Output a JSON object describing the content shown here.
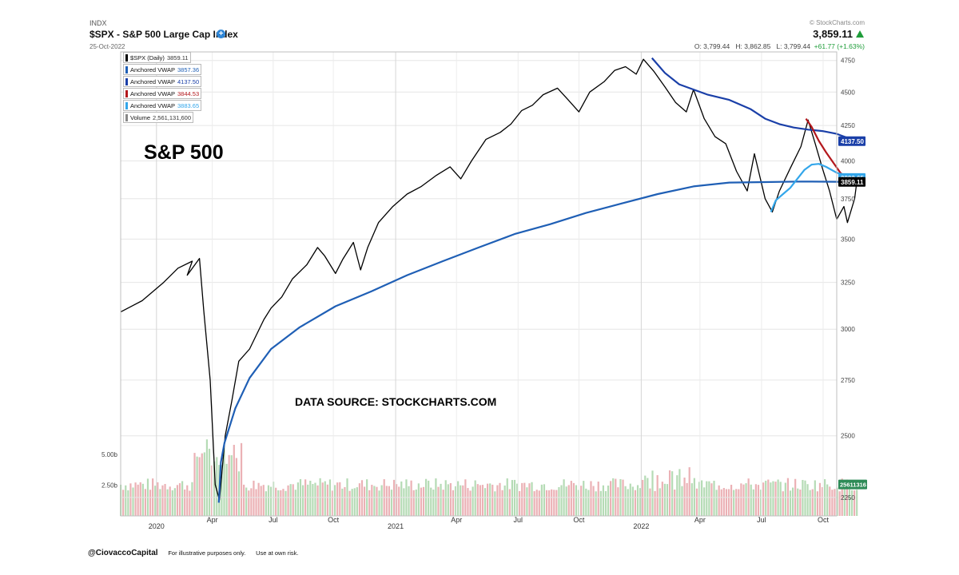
{
  "header": {
    "exchange": "INDX",
    "title": "$SPX - S&P 500 Large Cap Index",
    "date": "25-Oct-2022",
    "copyright": "© StockCharts.com",
    "last": "3,859.11",
    "ohlc": {
      "open": "O: 3,799.44",
      "high": "H: 3,862.85",
      "low": "L: 3,799.44",
      "change": "+61.77 (+1.63%)"
    }
  },
  "legend": [
    {
      "label": "$SPX (Daily)",
      "value": "3859.11",
      "color": "#000000"
    },
    {
      "label": "Anchored VWAP",
      "value": "3857.36",
      "color": "#1f5fb5"
    },
    {
      "label": "Anchored VWAP",
      "value": "4137.50",
      "color": "#1a3fa8"
    },
    {
      "label": "Anchored VWAP",
      "value": "3844.53",
      "color": "#b3171c"
    },
    {
      "label": "Anchored VWAP",
      "value": "3883.65",
      "color": "#33a6ea"
    },
    {
      "label": "Volume",
      "value": "2,561,131,600",
      "color": "#888888"
    }
  ],
  "annotations": {
    "main_label": "S&P 500",
    "source": "DATA SOURCE: STOCKCHARTS.COM"
  },
  "footer": {
    "handle": "@CiovaccoCapital",
    "note1": "For illustrative purposes only.",
    "note2": "Use at own risk."
  },
  "chart_data": {
    "type": "line",
    "y_scale": "log",
    "price_ylim": [
      2180,
      4820
    ],
    "price_ticks": [
      2250,
      2500,
      2750,
      3000,
      3250,
      3500,
      3750,
      4000,
      4250,
      4500,
      4750
    ],
    "volume_ticks": [
      {
        "label": "2.50b",
        "value": 2.5
      },
      {
        "label": "5.00b",
        "value": 5.0
      }
    ],
    "volume_ylim_b": [
      0,
      8.2
    ],
    "x_labels": [
      {
        "label": "2020",
        "t": 0.05
      },
      {
        "label": "Apr",
        "t": 0.128
      },
      {
        "label": "Jul",
        "t": 0.213
      },
      {
        "label": "Oct",
        "t": 0.297
      },
      {
        "label": "2021",
        "t": 0.384
      },
      {
        "label": "Apr",
        "t": 0.469
      },
      {
        "label": "Jul",
        "t": 0.555
      },
      {
        "label": "Oct",
        "t": 0.64
      },
      {
        "label": "2022",
        "t": 0.727
      },
      {
        "label": "Apr",
        "t": 0.809
      },
      {
        "label": "Jul",
        "t": 0.895
      },
      {
        "label": "Oct",
        "t": 0.981
      }
    ],
    "major_x": [
      "2020",
      "2021",
      "2022"
    ],
    "series": [
      {
        "name": "$SPX (Daily)",
        "color": "#000000",
        "points": [
          [
            0,
            3090
          ],
          [
            0.03,
            3150
          ],
          [
            0.06,
            3250
          ],
          [
            0.08,
            3330
          ],
          [
            0.1,
            3370
          ],
          [
            0.093,
            3290
          ],
          [
            0.11,
            3386
          ],
          [
            0.116,
            3100
          ],
          [
            0.125,
            2750
          ],
          [
            0.132,
            2300
          ],
          [
            0.138,
            2240
          ],
          [
            0.146,
            2500
          ],
          [
            0.155,
            2650
          ],
          [
            0.165,
            2840
          ],
          [
            0.18,
            2900
          ],
          [
            0.2,
            3050
          ],
          [
            0.21,
            3110
          ],
          [
            0.225,
            3170
          ],
          [
            0.24,
            3270
          ],
          [
            0.26,
            3350
          ],
          [
            0.275,
            3450
          ],
          [
            0.285,
            3400
          ],
          [
            0.3,
            3300
          ],
          [
            0.31,
            3380
          ],
          [
            0.325,
            3480
          ],
          [
            0.335,
            3320
          ],
          [
            0.345,
            3450
          ],
          [
            0.36,
            3600
          ],
          [
            0.38,
            3700
          ],
          [
            0.4,
            3780
          ],
          [
            0.42,
            3830
          ],
          [
            0.44,
            3900
          ],
          [
            0.46,
            3960
          ],
          [
            0.475,
            3880
          ],
          [
            0.49,
            4000
          ],
          [
            0.51,
            4150
          ],
          [
            0.53,
            4200
          ],
          [
            0.545,
            4260
          ],
          [
            0.56,
            4360
          ],
          [
            0.575,
            4400
          ],
          [
            0.59,
            4480
          ],
          [
            0.61,
            4530
          ],
          [
            0.625,
            4440
          ],
          [
            0.64,
            4350
          ],
          [
            0.655,
            4500
          ],
          [
            0.675,
            4580
          ],
          [
            0.69,
            4670
          ],
          [
            0.705,
            4700
          ],
          [
            0.72,
            4640
          ],
          [
            0.73,
            4760
          ],
          [
            0.745,
            4660
          ],
          [
            0.76,
            4540
          ],
          [
            0.775,
            4420
          ],
          [
            0.79,
            4350
          ],
          [
            0.8,
            4520
          ],
          [
            0.815,
            4300
          ],
          [
            0.83,
            4170
          ],
          [
            0.845,
            4120
          ],
          [
            0.86,
            3930
          ],
          [
            0.875,
            3800
          ],
          [
            0.885,
            4050
          ],
          [
            0.9,
            3750
          ],
          [
            0.91,
            3666
          ],
          [
            0.92,
            3800
          ],
          [
            0.935,
            3950
          ],
          [
            0.95,
            4100
          ],
          [
            0.96,
            4290
          ],
          [
            0.97,
            4120
          ],
          [
            0.98,
            3950
          ],
          [
            0.99,
            3800
          ],
          [
            1.0,
            3620
          ],
          [
            1.01,
            3700
          ],
          [
            1.015,
            3600
          ],
          [
            1.025,
            3750
          ],
          [
            1.028,
            3859
          ]
        ]
      },
      {
        "name": "Anchored VWAP",
        "color": "#1f5fb5",
        "points": [
          [
            0.137,
            2230
          ],
          [
            0.14,
            2390
          ],
          [
            0.145,
            2470
          ],
          [
            0.16,
            2620
          ],
          [
            0.18,
            2760
          ],
          [
            0.21,
            2900
          ],
          [
            0.25,
            3010
          ],
          [
            0.3,
            3120
          ],
          [
            0.35,
            3200
          ],
          [
            0.4,
            3290
          ],
          [
            0.45,
            3370
          ],
          [
            0.5,
            3450
          ],
          [
            0.55,
            3530
          ],
          [
            0.6,
            3590
          ],
          [
            0.65,
            3660
          ],
          [
            0.7,
            3720
          ],
          [
            0.75,
            3780
          ],
          [
            0.8,
            3830
          ],
          [
            0.85,
            3855
          ],
          [
            0.9,
            3858
          ],
          [
            0.95,
            3862
          ],
          [
            1.0,
            3860
          ],
          [
            1.028,
            3857
          ]
        ]
      },
      {
        "name": "Anchored VWAP",
        "color": "#1a3fa8",
        "points": [
          [
            0.742,
            4770
          ],
          [
            0.76,
            4650
          ],
          [
            0.78,
            4560
          ],
          [
            0.8,
            4520
          ],
          [
            0.82,
            4480
          ],
          [
            0.85,
            4440
          ],
          [
            0.88,
            4370
          ],
          [
            0.9,
            4300
          ],
          [
            0.92,
            4260
          ],
          [
            0.94,
            4235
          ],
          [
            0.96,
            4220
          ],
          [
            0.98,
            4210
          ],
          [
            1.0,
            4190
          ],
          [
            1.028,
            4137
          ]
        ]
      },
      {
        "name": "Anchored VWAP",
        "color": "#b3171c",
        "points": [
          [
            0.957,
            4300
          ],
          [
            0.965,
            4240
          ],
          [
            0.975,
            4140
          ],
          [
            0.985,
            4060
          ],
          [
            0.995,
            3990
          ],
          [
            1.005,
            3920
          ],
          [
            1.015,
            3880
          ],
          [
            1.028,
            3844
          ]
        ]
      },
      {
        "name": "Anchored VWAP",
        "color": "#33a6ea",
        "points": [
          [
            0.908,
            3666
          ],
          [
            0.915,
            3740
          ],
          [
            0.925,
            3780
          ],
          [
            0.935,
            3820
          ],
          [
            0.945,
            3880
          ],
          [
            0.955,
            3940
          ],
          [
            0.965,
            3975
          ],
          [
            0.975,
            3980
          ],
          [
            0.985,
            3960
          ],
          [
            1.0,
            3920
          ],
          [
            1.015,
            3900
          ],
          [
            1.028,
            3884
          ]
        ]
      }
    ]
  }
}
